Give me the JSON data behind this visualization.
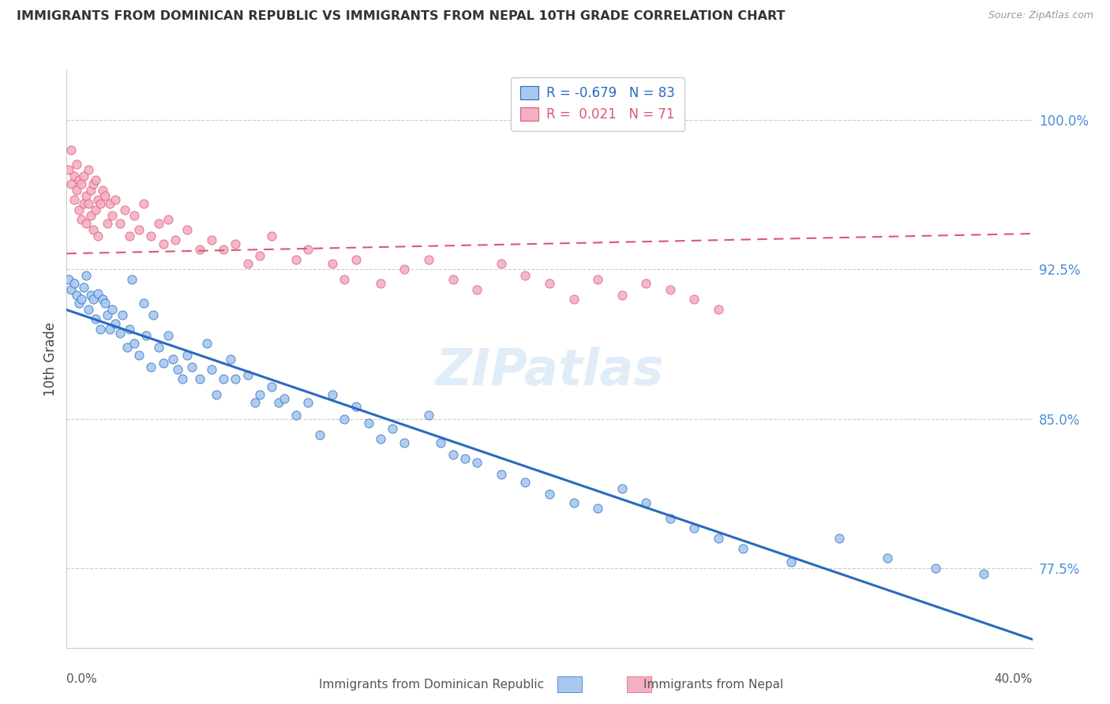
{
  "title": "IMMIGRANTS FROM DOMINICAN REPUBLIC VS IMMIGRANTS FROM NEPAL 10TH GRADE CORRELATION CHART",
  "source": "Source: ZipAtlas.com",
  "ylabel": "10th Grade",
  "y_tick_labels": [
    "100.0%",
    "92.5%",
    "85.0%",
    "77.5%"
  ],
  "y_tick_values": [
    1.0,
    0.925,
    0.85,
    0.775
  ],
  "xlim": [
    0.0,
    0.4
  ],
  "ylim": [
    0.735,
    1.025
  ],
  "legend_label1": "Immigrants from Dominican Republic",
  "legend_label2": "Immigrants from Nepal",
  "R1": -0.679,
  "N1": 83,
  "R2": 0.021,
  "N2": 71,
  "color_blue": "#a8c8f0",
  "color_pink": "#f5b0c0",
  "line_color_blue": "#2a6abf",
  "line_color_pink": "#d85878",
  "watermark": "ZIPatlas",
  "blue_scatter_x": [
    0.001,
    0.002,
    0.003,
    0.004,
    0.005,
    0.006,
    0.007,
    0.008,
    0.009,
    0.01,
    0.011,
    0.012,
    0.013,
    0.014,
    0.015,
    0.016,
    0.017,
    0.018,
    0.019,
    0.02,
    0.022,
    0.023,
    0.025,
    0.026,
    0.027,
    0.028,
    0.03,
    0.032,
    0.033,
    0.035,
    0.036,
    0.038,
    0.04,
    0.042,
    0.044,
    0.046,
    0.048,
    0.05,
    0.052,
    0.055,
    0.058,
    0.06,
    0.062,
    0.065,
    0.068,
    0.07,
    0.075,
    0.078,
    0.08,
    0.085,
    0.088,
    0.09,
    0.095,
    0.1,
    0.105,
    0.11,
    0.115,
    0.12,
    0.125,
    0.13,
    0.135,
    0.14,
    0.15,
    0.155,
    0.16,
    0.165,
    0.17,
    0.18,
    0.19,
    0.2,
    0.21,
    0.22,
    0.23,
    0.24,
    0.25,
    0.26,
    0.27,
    0.28,
    0.3,
    0.32,
    0.34,
    0.36,
    0.38
  ],
  "blue_scatter_y": [
    0.92,
    0.915,
    0.918,
    0.912,
    0.908,
    0.91,
    0.916,
    0.922,
    0.905,
    0.912,
    0.91,
    0.9,
    0.913,
    0.895,
    0.91,
    0.908,
    0.902,
    0.895,
    0.905,
    0.898,
    0.893,
    0.902,
    0.886,
    0.895,
    0.92,
    0.888,
    0.882,
    0.908,
    0.892,
    0.876,
    0.902,
    0.886,
    0.878,
    0.892,
    0.88,
    0.875,
    0.87,
    0.882,
    0.876,
    0.87,
    0.888,
    0.875,
    0.862,
    0.87,
    0.88,
    0.87,
    0.872,
    0.858,
    0.862,
    0.866,
    0.858,
    0.86,
    0.852,
    0.858,
    0.842,
    0.862,
    0.85,
    0.856,
    0.848,
    0.84,
    0.845,
    0.838,
    0.852,
    0.838,
    0.832,
    0.83,
    0.828,
    0.822,
    0.818,
    0.812,
    0.808,
    0.805,
    0.815,
    0.808,
    0.8,
    0.795,
    0.79,
    0.785,
    0.778,
    0.79,
    0.78,
    0.775,
    0.772
  ],
  "pink_scatter_x": [
    0.001,
    0.002,
    0.002,
    0.003,
    0.003,
    0.004,
    0.004,
    0.005,
    0.005,
    0.006,
    0.006,
    0.007,
    0.007,
    0.008,
    0.008,
    0.009,
    0.009,
    0.01,
    0.01,
    0.011,
    0.011,
    0.012,
    0.012,
    0.013,
    0.013,
    0.014,
    0.015,
    0.016,
    0.017,
    0.018,
    0.019,
    0.02,
    0.022,
    0.024,
    0.026,
    0.028,
    0.03,
    0.032,
    0.035,
    0.038,
    0.04,
    0.042,
    0.045,
    0.05,
    0.055,
    0.06,
    0.065,
    0.07,
    0.075,
    0.08,
    0.085,
    0.095,
    0.1,
    0.11,
    0.115,
    0.12,
    0.13,
    0.14,
    0.15,
    0.16,
    0.17,
    0.18,
    0.19,
    0.2,
    0.21,
    0.22,
    0.23,
    0.24,
    0.25,
    0.26,
    0.27
  ],
  "pink_scatter_y": [
    0.975,
    0.968,
    0.985,
    0.972,
    0.96,
    0.978,
    0.965,
    0.97,
    0.955,
    0.968,
    0.95,
    0.972,
    0.958,
    0.962,
    0.948,
    0.975,
    0.958,
    0.965,
    0.952,
    0.968,
    0.945,
    0.97,
    0.955,
    0.96,
    0.942,
    0.958,
    0.965,
    0.962,
    0.948,
    0.958,
    0.952,
    0.96,
    0.948,
    0.955,
    0.942,
    0.952,
    0.945,
    0.958,
    0.942,
    0.948,
    0.938,
    0.95,
    0.94,
    0.945,
    0.935,
    0.94,
    0.935,
    0.938,
    0.928,
    0.932,
    0.942,
    0.93,
    0.935,
    0.928,
    0.92,
    0.93,
    0.918,
    0.925,
    0.93,
    0.92,
    0.915,
    0.928,
    0.922,
    0.918,
    0.91,
    0.92,
    0.912,
    0.918,
    0.915,
    0.91,
    0.905
  ]
}
